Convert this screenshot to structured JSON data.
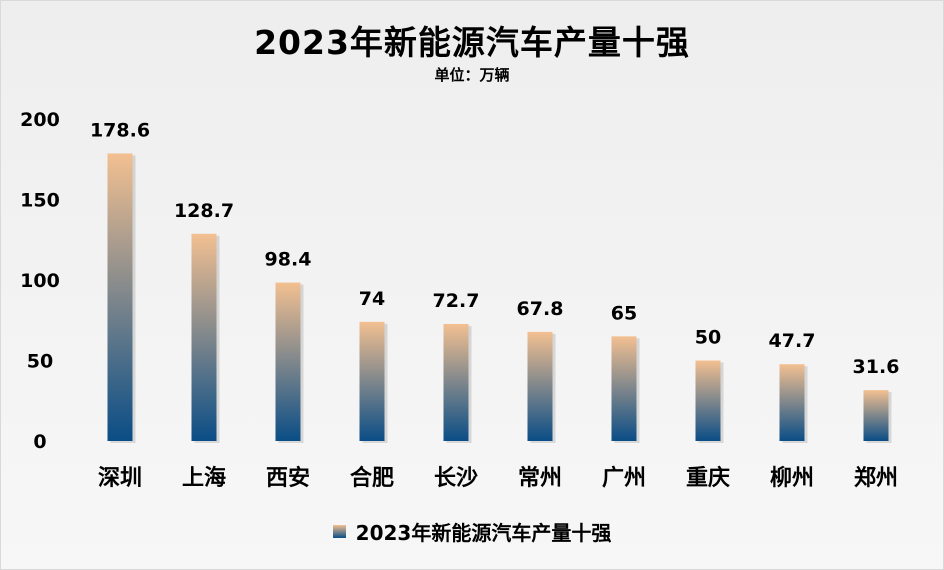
{
  "chart_data": {
    "type": "bar",
    "title": "2023年新能源汽车产量十强",
    "subtitle": "单位：万辆",
    "categories": [
      "深圳",
      "上海",
      "西安",
      "合肥",
      "长沙",
      "常州",
      "广州",
      "重庆",
      "柳州",
      "郑州"
    ],
    "series": [
      {
        "name": "2023年新能源汽车产量十强",
        "values": [
          178.6,
          128.7,
          98.4,
          74,
          72.7,
          67.8,
          65,
          50,
          47.7,
          31.6
        ]
      }
    ],
    "data_labels": [
      "178.6",
      "128.7",
      "98.4",
      "74",
      "72.7",
      "67.8",
      "65",
      "50",
      "47.7",
      "31.6"
    ],
    "ylim": [
      0,
      200
    ],
    "yticks": [
      0,
      50,
      100,
      150,
      200
    ],
    "grid": false,
    "legend_position": "bottom",
    "colors": {
      "bar_top": "#f3c091",
      "bar_bottom": "#0a4d86"
    }
  }
}
